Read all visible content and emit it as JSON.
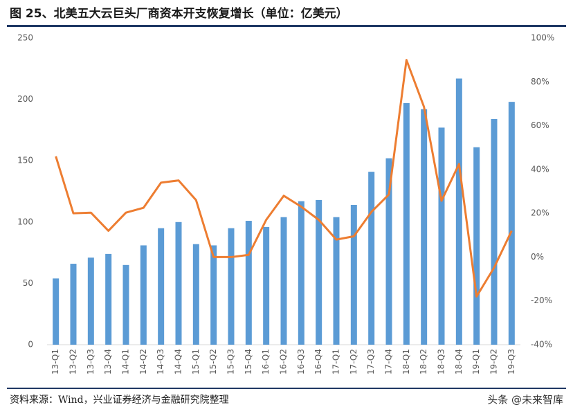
{
  "chart_data": {
    "type": "bar_line",
    "title": "图 25、北美五大云巨头厂商资本开支恢复增长（单位：亿美元）",
    "source": "资料来源：Wind，兴业证券经济与金融研究院整理",
    "watermark": "头条 @未来智库",
    "categories": [
      "13-Q1",
      "13-Q2",
      "13-Q3",
      "13-Q4",
      "14-Q1",
      "14-Q2",
      "14-Q3",
      "14-Q4",
      "15-Q1",
      "15-Q2",
      "15-Q3",
      "15-Q4",
      "16-Q1",
      "16-Q2",
      "16-Q3",
      "16-Q4",
      "17-Q1",
      "17-Q2",
      "17-Q3",
      "17-Q4",
      "18-Q1",
      "18-Q2",
      "18-Q3",
      "18-Q4",
      "19-Q1",
      "19-Q2",
      "19-Q3"
    ],
    "series": [
      {
        "color": "#5b9bd5",
        "values": [
          54,
          66,
          71,
          74,
          65,
          81,
          95,
          100,
          82,
          81,
          95,
          101,
          96,
          104,
          117,
          118,
          104,
          114,
          141,
          152,
          197,
          192,
          177,
          217,
          161,
          184,
          198
        ]
      },
      {
        "color": "#ed7d31",
        "axis": "y2",
        "values": [
          46,
          20,
          20.3,
          12,
          20.3,
          22.5,
          34,
          35,
          26,
          0,
          0,
          1,
          17,
          28,
          23,
          17,
          8,
          9.5,
          20.6,
          28.6,
          90,
          68.6,
          25.7,
          42.5,
          -18,
          -4.8,
          12
        ]
      }
    ],
    "ylim": [
      0,
      250
    ],
    "yticks": [
      0,
      50,
      100,
      150,
      200,
      250
    ],
    "y2lim": [
      -40,
      100
    ],
    "y2ticks": [
      {
        "value": -40,
        "label": "-40%"
      },
      {
        "value": -20,
        "label": "-20%"
      },
      {
        "value": 0,
        "label": "0%"
      },
      {
        "value": 20,
        "label": "20%"
      },
      {
        "value": 40,
        "label": "40%"
      },
      {
        "value": 60,
        "label": "60%"
      },
      {
        "value": 80,
        "label": "80%"
      },
      {
        "value": 100,
        "label": "100%"
      }
    ]
  }
}
